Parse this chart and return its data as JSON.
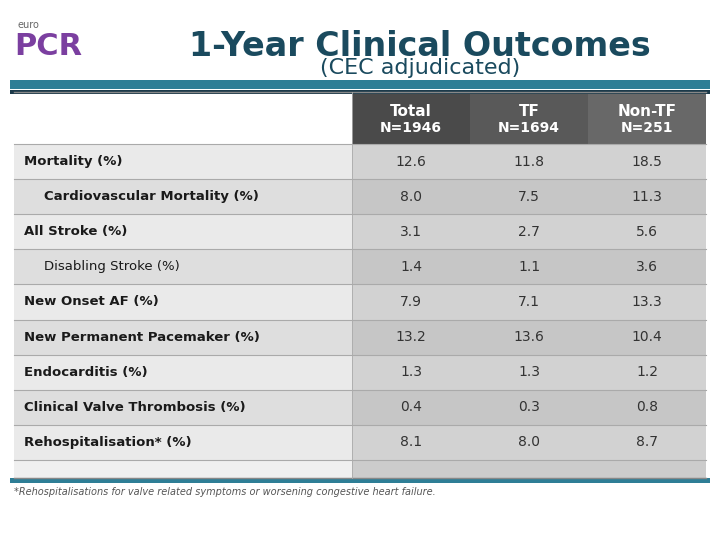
{
  "title_line1": "1-Year Clinical Outcomes",
  "title_line2": "(CEC adjudicated)",
  "col_headers_line1": [
    "Total",
    "TF",
    "Non-TF"
  ],
  "col_headers_line2": [
    "N=1946",
    "N=1694",
    "N=251"
  ],
  "rows": [
    {
      "label": "Mortality (%)",
      "indent": false,
      "bold": true,
      "values": [
        "12.6",
        "11.8",
        "18.5"
      ]
    },
    {
      "label": "  Cardiovascular Mortality (%)",
      "indent": true,
      "bold": true,
      "values": [
        "8.0",
        "7.5",
        "11.3"
      ]
    },
    {
      "label": "All Stroke (%)",
      "indent": false,
      "bold": true,
      "values": [
        "3.1",
        "2.7",
        "5.6"
      ]
    },
    {
      "label": "  Disabling Stroke (%)",
      "indent": true,
      "bold": false,
      "values": [
        "1.4",
        "1.1",
        "3.6"
      ]
    },
    {
      "label": "New Onset AF (%)",
      "indent": false,
      "bold": true,
      "values": [
        "7.9",
        "7.1",
        "13.3"
      ]
    },
    {
      "label": "New Permanent Pacemaker (%)",
      "indent": false,
      "bold": true,
      "values": [
        "13.2",
        "13.6",
        "10.4"
      ]
    },
    {
      "label": "Endocarditis (%)",
      "indent": false,
      "bold": true,
      "values": [
        "1.3",
        "1.3",
        "1.2"
      ]
    },
    {
      "label": "Clinical Valve Thrombosis (%)",
      "indent": false,
      "bold": true,
      "values": [
        "0.4",
        "0.3",
        "0.8"
      ]
    },
    {
      "label": "Rehospitalisation* (%)",
      "indent": false,
      "bold": true,
      "values": [
        "8.1",
        "8.0",
        "8.7"
      ]
    }
  ],
  "footnote": "*Rehospitalisations for valve related symptoms or worsening congestive heart failure.",
  "header_bg_left": "#4a4a4a",
  "header_bg_right": "#666666",
  "header_text_color": "#ffffff",
  "row_bg_odd": "#d8d8d8",
  "row_bg_even": "#c5c5c5",
  "label_col_bg_odd": "#ebebeb",
  "label_col_bg_even": "#e0e0e0",
  "sep_teal": "#2e7e96",
  "sep_dark": "#1c3a4a",
  "title_color": "#1a4a5e",
  "data_text_color": "#333333",
  "label_bold_color": "#1a1a1a",
  "label_normal_color": "#2a2a2a",
  "background_color": "#ffffff",
  "bottom_strip_color": "#cccccc"
}
